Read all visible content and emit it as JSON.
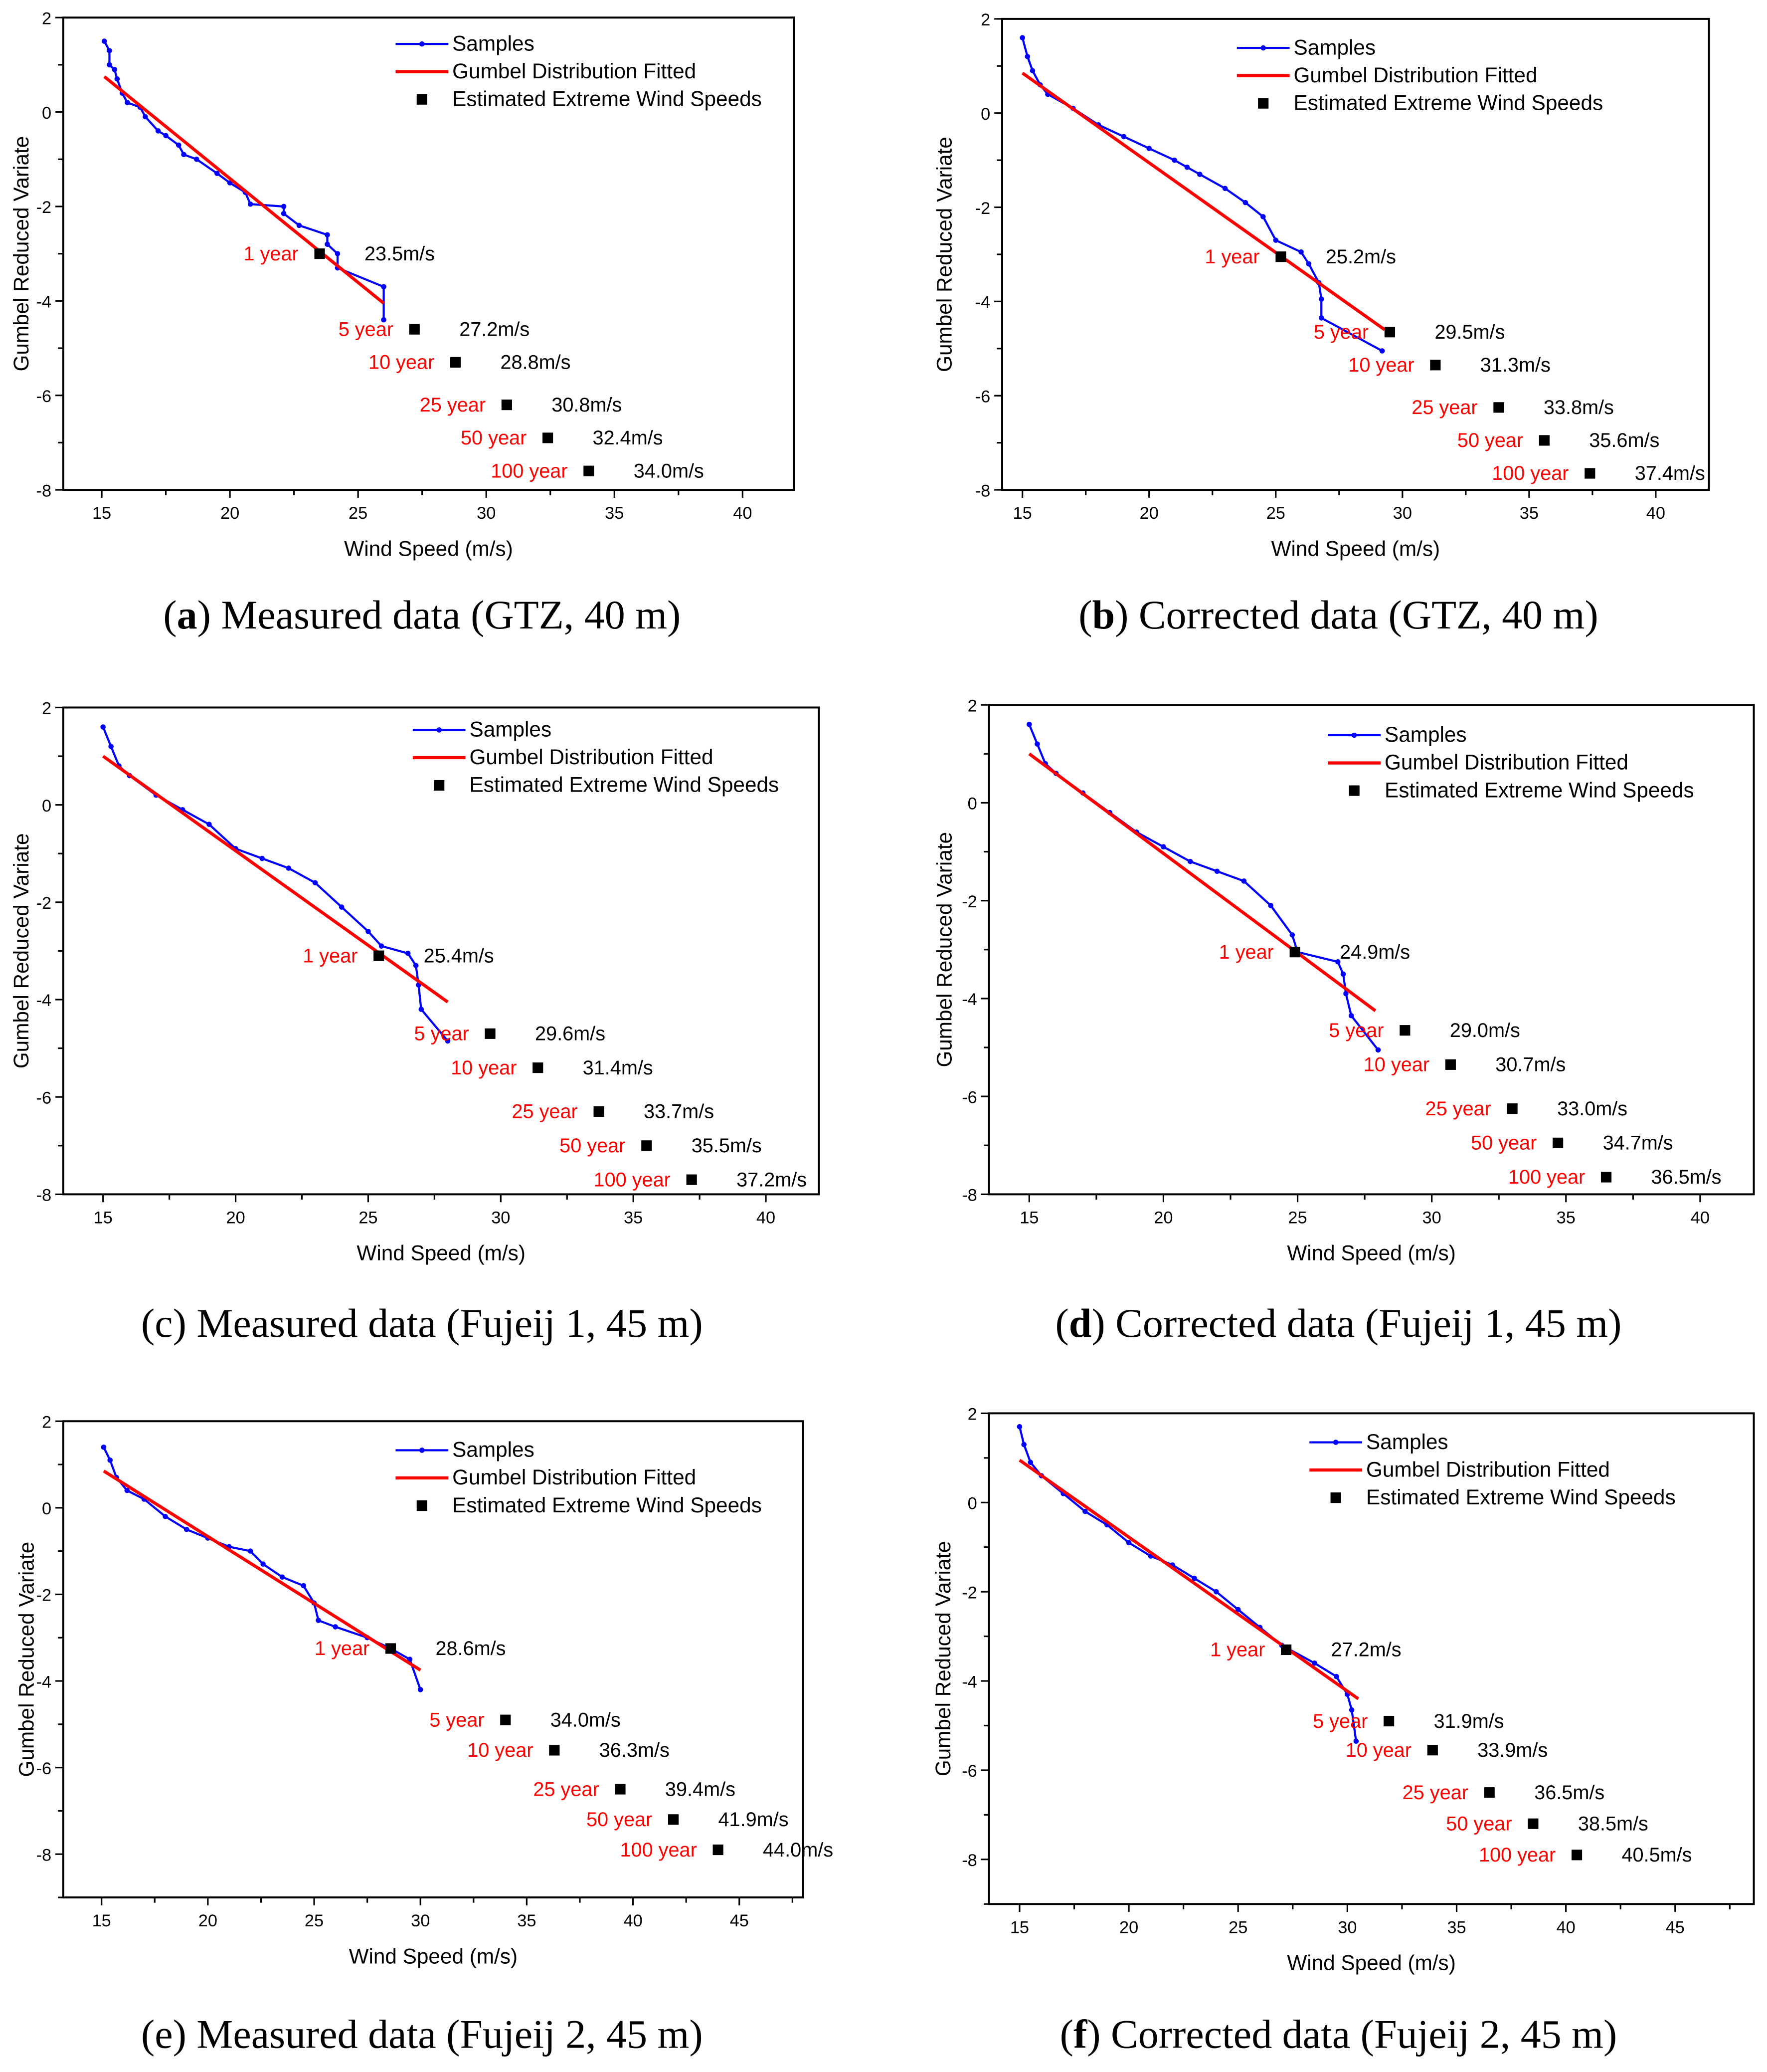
{
  "colors": {
    "samples": "#0000ff",
    "fit": "#ff0000",
    "estimates": "#000000",
    "period_label": "#ff0000"
  },
  "legend": [
    "Samples",
    "Gumbel Distribution Fitted",
    "Estimated Extreme Wind Speeds"
  ],
  "chart_data": [
    {
      "panel": "a",
      "caption_letter": "a",
      "caption_text": " Measured data (GTZ, 40 m)",
      "letter_bold": true,
      "type": "line",
      "xlabel": "Wind Speed (m/s)",
      "ylabel": "Gumbel Reduced Variate",
      "xlim": [
        13.5,
        42
      ],
      "ylim": [
        -8,
        2
      ],
      "xticks": [
        15,
        20,
        25,
        30,
        35,
        40
      ],
      "yticks": [
        2,
        0,
        -2,
        -4,
        -6,
        -8
      ],
      "samples": {
        "x": [
          15.1,
          15.3,
          15.3,
          15.5,
          15.6,
          15.8,
          16.0,
          16.5,
          16.7,
          17.2,
          17.5,
          18.0,
          18.2,
          18.7,
          19.5,
          20.0,
          20.6,
          20.8,
          22.1,
          22.1,
          22.7,
          23.8,
          23.8,
          24.2,
          24.2,
          26.0,
          26.0
        ],
        "y": [
          1.5,
          1.3,
          1.0,
          0.9,
          0.7,
          0.4,
          0.2,
          0.1,
          -0.1,
          -0.4,
          -0.5,
          -0.7,
          -0.9,
          -1.0,
          -1.3,
          -1.5,
          -1.7,
          -1.95,
          -2.0,
          -2.15,
          -2.4,
          -2.6,
          -2.8,
          -3.0,
          -3.3,
          -3.7,
          -4.4
        ]
      },
      "fit": {
        "x": [
          15.1,
          26.0
        ],
        "y": [
          0.75,
          -4.05
        ]
      },
      "estimates": [
        {
          "period": "1 year",
          "value": 23.5,
          "y": -3.0,
          "label": "23.5m/s"
        },
        {
          "period": "5 year",
          "value": 27.2,
          "y": -4.6,
          "label": "27.2m/s"
        },
        {
          "period": "10 year",
          "value": 28.8,
          "y": -5.3,
          "label": "28.8m/s"
        },
        {
          "period": "25 year",
          "value": 30.8,
          "y": -6.2,
          "label": "30.8m/s"
        },
        {
          "period": "50 year",
          "value": 32.4,
          "y": -6.9,
          "label": "32.4m/s"
        },
        {
          "period": "100 year",
          "value": 34.0,
          "y": -7.6,
          "label": "34.0m/s"
        }
      ]
    },
    {
      "panel": "b",
      "caption_letter": "b",
      "caption_text": " Corrected data (GTZ, 40 m)",
      "letter_bold": true,
      "type": "line",
      "xlabel": "Wind Speed (m/s)",
      "ylabel": "Gumbel Reduced Variate",
      "xlim": [
        14.2,
        42.1
      ],
      "ylim": [
        -8,
        2
      ],
      "xticks": [
        15,
        20,
        25,
        30,
        35,
        40
      ],
      "yticks": [
        2,
        0,
        -2,
        -4,
        -6,
        -8
      ],
      "samples": {
        "x": [
          15.0,
          15.2,
          15.4,
          15.7,
          16.0,
          17.0,
          18.0,
          19.0,
          20.0,
          21.0,
          21.5,
          22.0,
          23.0,
          23.8,
          24.5,
          25.0,
          26.0,
          26.3,
          26.7,
          26.8,
          26.8,
          29.2
        ],
        "y": [
          1.6,
          1.2,
          0.9,
          0.6,
          0.4,
          0.1,
          -0.25,
          -0.5,
          -0.75,
          -1.0,
          -1.15,
          -1.3,
          -1.6,
          -1.9,
          -2.2,
          -2.7,
          -2.95,
          -3.2,
          -3.6,
          -3.95,
          -4.35,
          -5.05
        ]
      },
      "fit": {
        "x": [
          15.0,
          29.3
        ],
        "y": [
          0.85,
          -4.6
        ]
      },
      "estimates": [
        {
          "period": "1 year",
          "value": 25.2,
          "y": -3.05,
          "label": "25.2m/s"
        },
        {
          "period": "5 year",
          "value": 29.5,
          "y": -4.65,
          "label": "29.5m/s"
        },
        {
          "period": "10 year",
          "value": 31.3,
          "y": -5.35,
          "label": "31.3m/s"
        },
        {
          "period": "25 year",
          "value": 33.8,
          "y": -6.25,
          "label": "33.8m/s"
        },
        {
          "period": "50 year",
          "value": 35.6,
          "y": -6.95,
          "label": "35.6m/s"
        },
        {
          "period": "100 year",
          "value": 37.4,
          "y": -7.65,
          "label": "37.4m/s"
        }
      ]
    },
    {
      "panel": "c",
      "caption_letter": "c",
      "caption_text": " Measured data (Fujeij 1, 45 m)",
      "letter_bold": false,
      "type": "line",
      "xlabel": "Wind Speed (m/s)",
      "ylabel": "Gumbel Reduced Variate",
      "xlim": [
        13.5,
        42
      ],
      "ylim": [
        -8,
        2
      ],
      "xticks": [
        15,
        20,
        25,
        30,
        35,
        40
      ],
      "yticks": [
        2,
        0,
        -2,
        -4,
        -6,
        -8
      ],
      "samples": {
        "x": [
          15.0,
          15.3,
          15.6,
          16.0,
          17.0,
          18.0,
          19.0,
          20.0,
          21.0,
          22.0,
          23.0,
          24.0,
          25.0,
          25.5,
          26.5,
          26.8,
          26.9,
          27.0,
          28.0
        ],
        "y": [
          1.6,
          1.2,
          0.8,
          0.6,
          0.2,
          -0.1,
          -0.4,
          -0.9,
          -1.1,
          -1.3,
          -1.6,
          -2.1,
          -2.6,
          -2.9,
          -3.05,
          -3.3,
          -3.7,
          -4.2,
          -4.85
        ]
      },
      "fit": {
        "x": [
          15.0,
          28.0
        ],
        "y": [
          1.0,
          -4.05
        ]
      },
      "estimates": [
        {
          "period": "1 year",
          "value": 25.4,
          "y": -3.1,
          "label": "25.4m/s"
        },
        {
          "period": "5 year",
          "value": 29.6,
          "y": -4.7,
          "label": "29.6m/s"
        },
        {
          "period": "10 year",
          "value": 31.4,
          "y": -5.4,
          "label": "31.4m/s"
        },
        {
          "period": "25 year",
          "value": 33.7,
          "y": -6.3,
          "label": "33.7m/s"
        },
        {
          "period": "50 year",
          "value": 35.5,
          "y": -7.0,
          "label": "35.5m/s"
        },
        {
          "period": "100 year",
          "value": 37.2,
          "y": -7.7,
          "label": "37.2m/s"
        }
      ]
    },
    {
      "panel": "d",
      "caption_letter": "d",
      "caption_text": " Corrected data (Fujeij 1, 45 m)",
      "letter_bold": true,
      "type": "line",
      "xlabel": "Wind Speed (m/s)",
      "ylabel": "Gumbel Reduced Variate",
      "xlim": [
        13.5,
        42
      ],
      "ylim": [
        -8,
        2
      ],
      "xticks": [
        15,
        20,
        25,
        30,
        35,
        40
      ],
      "yticks": [
        2,
        0,
        -2,
        -4,
        -6,
        -8
      ],
      "samples": {
        "x": [
          15.0,
          15.3,
          15.6,
          16.0,
          17.0,
          18.0,
          19.0,
          20.0,
          21.0,
          22.0,
          23.0,
          24.0,
          24.8,
          25.0,
          26.5,
          26.7,
          26.8,
          27.0,
          28.0
        ],
        "y": [
          1.6,
          1.2,
          0.8,
          0.6,
          0.2,
          -0.2,
          -0.6,
          -0.9,
          -1.2,
          -1.4,
          -1.6,
          -2.1,
          -2.7,
          -3.05,
          -3.25,
          -3.5,
          -3.9,
          -4.35,
          -5.05
        ]
      },
      "fit": {
        "x": [
          15.0,
          27.9
        ],
        "y": [
          1.0,
          -4.25
        ]
      },
      "estimates": [
        {
          "period": "1 year",
          "value": 24.9,
          "y": -3.05,
          "label": "24.9m/s"
        },
        {
          "period": "5 year",
          "value": 29.0,
          "y": -4.65,
          "label": "29.0m/s"
        },
        {
          "period": "10 year",
          "value": 30.7,
          "y": -5.35,
          "label": "30.7m/s"
        },
        {
          "period": "25 year",
          "value": 33.0,
          "y": -6.25,
          "label": "33.0m/s"
        },
        {
          "period": "50 year",
          "value": 34.7,
          "y": -6.95,
          "label": "34.7m/s"
        },
        {
          "period": "100 year",
          "value": 36.5,
          "y": -7.65,
          "label": "36.5m/s"
        }
      ]
    },
    {
      "panel": "e",
      "caption_letter": "e",
      "caption_text": " Measured data (Fujeij 2, 45 m)",
      "letter_bold": false,
      "type": "line",
      "xlabel": "Wind Speed (m/s)",
      "ylabel": "Gumbel Reduced Variate",
      "xlim": [
        13.2,
        48
      ],
      "ylim": [
        -9,
        2
      ],
      "xticks": [
        15,
        20,
        25,
        30,
        35,
        40,
        45
      ],
      "yticks": [
        2,
        0,
        -2,
        -4,
        -6,
        -8
      ],
      "samples": {
        "x": [
          15.1,
          15.4,
          15.7,
          16.2,
          17.0,
          18.0,
          19.0,
          20.0,
          21.0,
          22.0,
          22.6,
          23.5,
          24.5,
          25.0,
          25.2,
          26.0,
          27.5,
          28.6,
          29.5,
          30.0
        ],
        "y": [
          1.4,
          1.1,
          0.7,
          0.4,
          0.2,
          -0.2,
          -0.5,
          -0.7,
          -0.9,
          -1.0,
          -1.3,
          -1.6,
          -1.8,
          -2.2,
          -2.6,
          -2.75,
          -3.0,
          -3.25,
          -3.5,
          -4.2
        ]
      },
      "fit": {
        "x": [
          15.1,
          30.0
        ],
        "y": [
          0.85,
          -3.75
        ]
      },
      "estimates": [
        {
          "period": "1 year",
          "value": 28.6,
          "y": -3.25,
          "label": "28.6m/s"
        },
        {
          "period": "5 year",
          "value": 34.0,
          "y": -4.9,
          "label": "34.0m/s"
        },
        {
          "period": "10 year",
          "value": 36.3,
          "y": -5.6,
          "label": "36.3m/s"
        },
        {
          "period": "25 year",
          "value": 39.4,
          "y": -6.5,
          "label": "39.4m/s"
        },
        {
          "period": "50 year",
          "value": 41.9,
          "y": -7.2,
          "label": "41.9m/s"
        },
        {
          "period": "100 year",
          "value": 44.0,
          "y": -7.9,
          "label": "44.0m/s"
        }
      ]
    },
    {
      "panel": "f",
      "caption_letter": "f",
      "caption_text": " Corrected data (Fujeij 2, 45 m)",
      "letter_bold": true,
      "type": "line",
      "xlabel": "Wind Speed (m/s)",
      "ylabel": "Gumbel Reduced Variate",
      "xlim": [
        13.6,
        48.6
      ],
      "ylim": [
        -9,
        2
      ],
      "xticks": [
        15,
        20,
        25,
        30,
        35,
        40,
        45
      ],
      "yticks": [
        2,
        0,
        -2,
        -4,
        -6,
        -8
      ],
      "samples": {
        "x": [
          15.0,
          15.2,
          15.5,
          16.0,
          17.0,
          18.0,
          19.0,
          20.0,
          21.0,
          22.0,
          23.0,
          24.0,
          25.0,
          26.0,
          27.0,
          28.5,
          29.5,
          30.0,
          30.2,
          30.4
        ],
        "y": [
          1.7,
          1.3,
          0.9,
          0.6,
          0.2,
          -0.2,
          -0.5,
          -0.9,
          -1.2,
          -1.4,
          -1.7,
          -2.0,
          -2.4,
          -2.8,
          -3.2,
          -3.6,
          -3.9,
          -4.3,
          -4.65,
          -5.35
        ]
      },
      "fit": {
        "x": [
          15.0,
          30.5
        ],
        "y": [
          0.95,
          -4.4
        ]
      },
      "estimates": [
        {
          "period": "1 year",
          "value": 27.2,
          "y": -3.3,
          "label": "27.2m/s"
        },
        {
          "period": "5 year",
          "value": 31.9,
          "y": -4.9,
          "label": "31.9m/s"
        },
        {
          "period": "10 year",
          "value": 33.9,
          "y": -5.55,
          "label": "33.9m/s"
        },
        {
          "period": "25 year",
          "value": 36.5,
          "y": -6.5,
          "label": "36.5m/s"
        },
        {
          "period": "50 year",
          "value": 38.5,
          "y": -7.2,
          "label": "38.5m/s"
        },
        {
          "period": "100 year",
          "value": 40.5,
          "y": -7.9,
          "label": "40.5m/s"
        }
      ]
    }
  ]
}
